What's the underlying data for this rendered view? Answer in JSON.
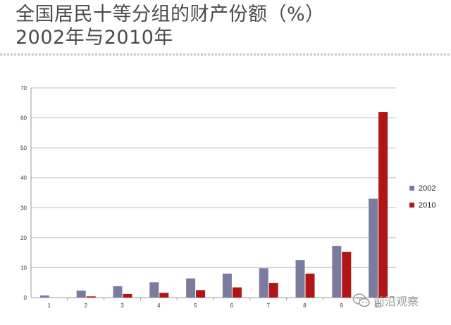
{
  "title": {
    "line1": "全国居民十等分组的财产份额（%）",
    "line2": "2002年与2010年"
  },
  "chart_data": {
    "type": "bar",
    "categories": [
      "1",
      "2",
      "3",
      "4",
      "5",
      "6",
      "7",
      "8",
      "9",
      "10"
    ],
    "series": [
      {
        "name": "2002",
        "color": "#7b7b9f",
        "values": [
          0.7,
          2.3,
          3.8,
          5.1,
          6.4,
          8.0,
          9.8,
          12.5,
          17.2,
          33.0
        ]
      },
      {
        "name": "2010",
        "color": "#b01616",
        "values": [
          0.0,
          0.4,
          1.2,
          1.6,
          2.5,
          3.4,
          4.9,
          8.0,
          15.3,
          62.0
        ]
      }
    ],
    "ylim": [
      0,
      70
    ],
    "yticks": [
      "0",
      "10",
      "20",
      "30",
      "40",
      "50",
      "60",
      "70"
    ],
    "grid": true,
    "legend": "right"
  },
  "watermark": {
    "text": "前沿观察",
    "icon": "wechat-icon"
  }
}
